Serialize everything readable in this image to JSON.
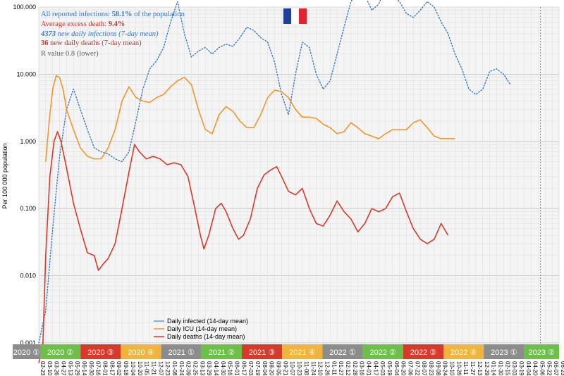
{
  "chart_data": {
    "type": "line",
    "scale": "log",
    "ylim": [
      0.001,
      100
    ],
    "ylabel": "Per 100 000 population",
    "y_ticks": [
      "100.000",
      "10.000",
      "1.000",
      "0.100",
      "0.010",
      "0.001"
    ],
    "grid": true,
    "flag": "France",
    "info": {
      "line1_prefix": "All reported infections: ",
      "line1_value": "58.1%",
      "line1_suffix": " of the population",
      "line2_prefix": "Average excess death: ",
      "line2_value": "9.4%",
      "line3_value": "4373",
      "line3_suffix": " new daily infections (7-day mean)",
      "line4_value": "36",
      "line4_suffix": " new daily deaths (7-day mean)",
      "line5": "R value 0.8 (lower)"
    },
    "legend": [
      {
        "label": "Daily infected (14-day mean)",
        "color": "#5b9bd5"
      },
      {
        "label": "Daily ICU (14-day mean)",
        "color": "#f0962a"
      },
      {
        "label": "Daily deaths (14-day mean)",
        "color": "#d8392b"
      }
    ],
    "quarters": [
      {
        "label": "2020 ①",
        "color": "#8c8c8c"
      },
      {
        "label": "2020 ②",
        "color": "#6cc04a"
      },
      {
        "label": "2020 ③",
        "color": "#d8392b"
      },
      {
        "label": "2020 ④",
        "color": "#f0b43c"
      },
      {
        "label": "2021 ①",
        "color": "#8c8c8c"
      },
      {
        "label": "2021 ②",
        "color": "#6cc04a"
      },
      {
        "label": "2021 ③",
        "color": "#d8392b"
      },
      {
        "label": "2021 ④",
        "color": "#f0b43c"
      },
      {
        "label": "2022 ①",
        "color": "#8c8c8c"
      },
      {
        "label": "2022 ②",
        "color": "#6cc04a"
      },
      {
        "label": "2022 ③",
        "color": "#d8392b"
      },
      {
        "label": "2022 ④",
        "color": "#f0b43c"
      },
      {
        "label": "2023 ①",
        "color": "#8c8c8c"
      },
      {
        "label": "2023 ②",
        "color": "#6cc04a"
      }
    ],
    "x_dates": [
      "02-23",
      "03-10",
      "03-26",
      "04-27",
      "05-13",
      "05-29",
      "06-14",
      "06-30",
      "07-16",
      "08-01",
      "08-17",
      "09-02",
      "09-18",
      "10-04",
      "10-20",
      "11-05",
      "11-21",
      "12-07",
      "12-23",
      "01-08",
      "01-24",
      "02-09",
      "02-25",
      "03-13",
      "03-29",
      "04-14",
      "04-30",
      "05-16",
      "06-01",
      "06-17",
      "07-03",
      "07-19",
      "08-04",
      "08-20",
      "09-05",
      "09-21",
      "10-07",
      "10-23",
      "11-08",
      "11-24",
      "12-10",
      "12-26",
      "01-11",
      "01-27",
      "02-12",
      "02-28",
      "03-16",
      "04-01",
      "04-17",
      "05-03",
      "05-19",
      "06-04",
      "06-20",
      "07-06",
      "07-22",
      "08-07",
      "08-23",
      "09-08",
      "09-24",
      "10-10",
      "10-26",
      "11-11",
      "11-27",
      "12-13",
      "12-29",
      "01-14",
      "01-30",
      "02-15",
      "03-03",
      "03-19",
      "04-04",
      "04-20",
      "05-06",
      "05-22",
      "06-07",
      "06-23"
    ],
    "series": [
      {
        "name": "Daily infected (14-day mean)",
        "key": "infected",
        "color": "#3a78c0",
        "style": "dotted",
        "values": [
          [
            0,
            0.001
          ],
          [
            1,
            0.003
          ],
          [
            2,
            0.05
          ],
          [
            3,
            0.6
          ],
          [
            4,
            3
          ],
          [
            5,
            6
          ],
          [
            6,
            3
          ],
          [
            7,
            1.5
          ],
          [
            8,
            0.8
          ],
          [
            9,
            0.7
          ],
          [
            10,
            0.65
          ],
          [
            11,
            0.55
          ],
          [
            12,
            0.5
          ],
          [
            13,
            0.7
          ],
          [
            14,
            2
          ],
          [
            15,
            6
          ],
          [
            16,
            12
          ],
          [
            17,
            16
          ],
          [
            18,
            25
          ],
          [
            19,
            60
          ],
          [
            20,
            120
          ],
          [
            21,
            40
          ],
          [
            22,
            18
          ],
          [
            23,
            22
          ],
          [
            24,
            25
          ],
          [
            25,
            20
          ],
          [
            26,
            25
          ],
          [
            27,
            28
          ],
          [
            28,
            26
          ],
          [
            29,
            35
          ],
          [
            30,
            50
          ],
          [
            31,
            45
          ],
          [
            32,
            35
          ],
          [
            33,
            30
          ],
          [
            34,
            15
          ],
          [
            35,
            5
          ],
          [
            36,
            2.5
          ],
          [
            37,
            10
          ],
          [
            38,
            30
          ],
          [
            39,
            25
          ],
          [
            40,
            10
          ],
          [
            41,
            6
          ],
          [
            42,
            8
          ],
          [
            43,
            20
          ],
          [
            44,
            50
          ],
          [
            45,
            120
          ],
          [
            46,
            180
          ],
          [
            47,
            150
          ],
          [
            48,
            90
          ],
          [
            49,
            110
          ],
          [
            50,
            200
          ],
          [
            51,
            150
          ],
          [
            52,
            120
          ],
          [
            53,
            80
          ],
          [
            54,
            70
          ],
          [
            55,
            90
          ],
          [
            56,
            120
          ],
          [
            57,
            100
          ],
          [
            58,
            60
          ],
          [
            59,
            40
          ],
          [
            60,
            20
          ],
          [
            61,
            12
          ],
          [
            62,
            6
          ],
          [
            63,
            5
          ],
          [
            64,
            6
          ],
          [
            65,
            11
          ],
          [
            66,
            12
          ],
          [
            67,
            10
          ],
          [
            68,
            7
          ]
        ]
      },
      {
        "name": "Daily ICU (14-day mean)",
        "key": "icu",
        "color": "#f0962a",
        "style": "solid",
        "values": [
          [
            1,
            0.5
          ],
          [
            1.5,
            2
          ],
          [
            2,
            6
          ],
          [
            2.5,
            9.5
          ],
          [
            3,
            9
          ],
          [
            3.5,
            6
          ],
          [
            4,
            3
          ],
          [
            5,
            1.5
          ],
          [
            6,
            0.8
          ],
          [
            7,
            0.6
          ],
          [
            8,
            0.55
          ],
          [
            9,
            0.55
          ],
          [
            10,
            0.8
          ],
          [
            11,
            1.5
          ],
          [
            12,
            4
          ],
          [
            13,
            6.5
          ],
          [
            14,
            4.5
          ],
          [
            15,
            4
          ],
          [
            16,
            3.8
          ],
          [
            17,
            4.5
          ],
          [
            18,
            5
          ],
          [
            19,
            6.5
          ],
          [
            20,
            8
          ],
          [
            21,
            9
          ],
          [
            22,
            7
          ],
          [
            23,
            3
          ],
          [
            24,
            1.5
          ],
          [
            25,
            1.3
          ],
          [
            26,
            2.5
          ],
          [
            27,
            3.3
          ],
          [
            28,
            2.8
          ],
          [
            29,
            2
          ],
          [
            30,
            1.6
          ],
          [
            31,
            1.6
          ],
          [
            32,
            2.5
          ],
          [
            33,
            4.5
          ],
          [
            34,
            5.8
          ],
          [
            35,
            5.5
          ],
          [
            36,
            4.5
          ],
          [
            37,
            3
          ],
          [
            38,
            2.3
          ],
          [
            39,
            2.3
          ],
          [
            40,
            2.2
          ],
          [
            41,
            1.8
          ],
          [
            42,
            1.6
          ],
          [
            43,
            1.3
          ],
          [
            44,
            1.4
          ],
          [
            45,
            1.9
          ],
          [
            46,
            1.6
          ],
          [
            47,
            1.3
          ],
          [
            48,
            1.2
          ],
          [
            49,
            1.1
          ],
          [
            50,
            1.3
          ],
          [
            51,
            1.5
          ],
          [
            52,
            1.5
          ],
          [
            53,
            1.5
          ],
          [
            54,
            1.9
          ],
          [
            55,
            2.1
          ],
          [
            56,
            1.6
          ],
          [
            57,
            1.2
          ],
          [
            58,
            1.1
          ],
          [
            59,
            1.1
          ],
          [
            60,
            1.1
          ]
        ]
      },
      {
        "name": "Daily deaths (14-day mean)",
        "key": "deaths",
        "color": "#d8392b",
        "style": "solid",
        "values": [
          [
            0,
            0.0005
          ],
          [
            0.6,
            0.001
          ],
          [
            1,
            0.02
          ],
          [
            1.6,
            0.3
          ],
          [
            2.2,
            1.0
          ],
          [
            2.7,
            1.4
          ],
          [
            3.2,
            1.0
          ],
          [
            4,
            0.4
          ],
          [
            5,
            0.12
          ],
          [
            6,
            0.05
          ],
          [
            7,
            0.022
          ],
          [
            8,
            0.02
          ],
          [
            8.6,
            0.012
          ],
          [
            9.3,
            0.015
          ],
          [
            10,
            0.018
          ],
          [
            11,
            0.03
          ],
          [
            12,
            0.1
          ],
          [
            13,
            0.35
          ],
          [
            13.8,
            0.9
          ],
          [
            14.5,
            0.7
          ],
          [
            15.5,
            0.55
          ],
          [
            16.5,
            0.6
          ],
          [
            17.5,
            0.55
          ],
          [
            18.5,
            0.45
          ],
          [
            19.5,
            0.48
          ],
          [
            20.5,
            0.45
          ],
          [
            21.5,
            0.3
          ],
          [
            22.5,
            0.1
          ],
          [
            23.3,
            0.04
          ],
          [
            23.8,
            0.025
          ],
          [
            24.5,
            0.04
          ],
          [
            25.5,
            0.1
          ],
          [
            26.3,
            0.12
          ],
          [
            27,
            0.09
          ],
          [
            28,
            0.05
          ],
          [
            28.8,
            0.035
          ],
          [
            29.5,
            0.04
          ],
          [
            30.5,
            0.07
          ],
          [
            31.5,
            0.2
          ],
          [
            32.5,
            0.32
          ],
          [
            33.5,
            0.38
          ],
          [
            34.3,
            0.42
          ],
          [
            35,
            0.3
          ],
          [
            36,
            0.18
          ],
          [
            37,
            0.16
          ],
          [
            38,
            0.2
          ],
          [
            39,
            0.1
          ],
          [
            40,
            0.06
          ],
          [
            41,
            0.055
          ],
          [
            42,
            0.08
          ],
          [
            43,
            0.13
          ],
          [
            44,
            0.09
          ],
          [
            45,
            0.07
          ],
          [
            46,
            0.045
          ],
          [
            47,
            0.06
          ],
          [
            48,
            0.1
          ],
          [
            49,
            0.09
          ],
          [
            50,
            0.1
          ],
          [
            51,
            0.15
          ],
          [
            52,
            0.17
          ],
          [
            53,
            0.09
          ],
          [
            54,
            0.05
          ],
          [
            55,
            0.035
          ],
          [
            56,
            0.03
          ],
          [
            57,
            0.035
          ],
          [
            58,
            0.06
          ],
          [
            59,
            0.04
          ]
        ]
      }
    ]
  }
}
